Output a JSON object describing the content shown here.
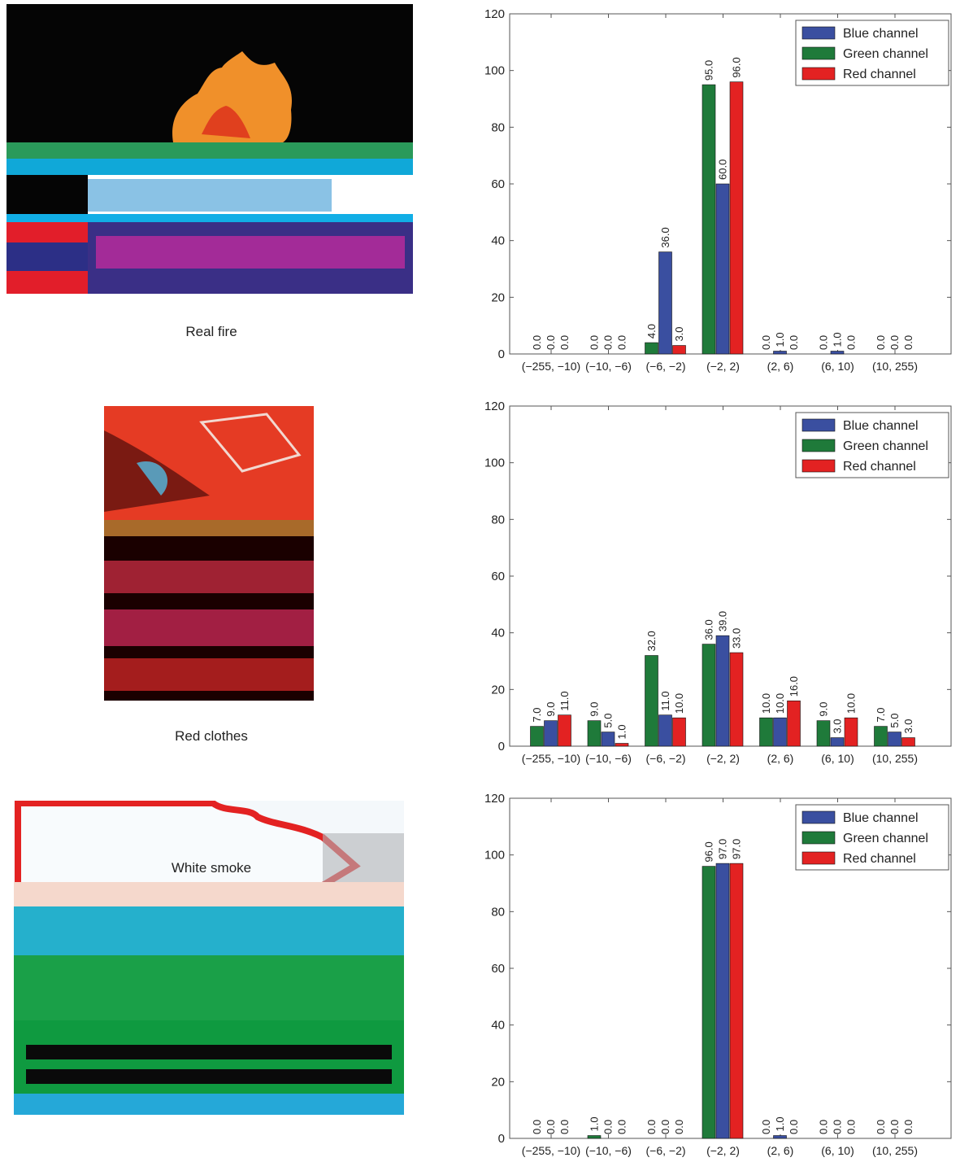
{
  "panels": [
    {
      "caption": "Real fire"
    },
    {
      "caption": "Red clothes"
    },
    {
      "caption": "White smoke"
    }
  ],
  "colors": {
    "blue": "#3a4fa0",
    "green": "#1f7a3a",
    "red": "#e32222"
  },
  "chart_data": [
    {
      "type": "bar",
      "categories": [
        "(−255, −10)",
        "(−10, −6)",
        "(−6, −2)",
        "(−2, 2)",
        "(2, 6)",
        "(6, 10)",
        "(10, 255)"
      ],
      "series": [
        {
          "name": "Blue channel",
          "values": [
            0,
            0,
            36,
            60,
            1,
            1,
            0
          ]
        },
        {
          "name": "Green channel",
          "values": [
            0,
            0,
            4,
            95,
            0,
            0,
            0
          ]
        },
        {
          "name": "Red channel",
          "values": [
            0,
            0,
            3,
            96,
            0,
            0,
            0
          ]
        }
      ],
      "ylim": [
        0,
        120
      ],
      "yticks": [
        0,
        20,
        40,
        60,
        80,
        100,
        120
      ],
      "legend": "top-right"
    },
    {
      "type": "bar",
      "categories": [
        "(−255, −10)",
        "(−10, −6)",
        "(−6, −2)",
        "(−2, 2)",
        "(2, 6)",
        "(6, 10)",
        "(10, 255)"
      ],
      "series": [
        {
          "name": "Blue channel",
          "values": [
            9,
            5,
            11,
            39,
            10,
            3,
            5
          ]
        },
        {
          "name": "Green channel",
          "values": [
            7,
            9,
            32,
            36,
            10,
            9,
            7
          ]
        },
        {
          "name": "Red channel",
          "values": [
            11,
            1,
            10,
            33,
            16,
            10,
            3
          ]
        }
      ],
      "ylim": [
        0,
        120
      ],
      "yticks": [
        0,
        20,
        40,
        60,
        80,
        100,
        120
      ],
      "legend": "top-right"
    },
    {
      "type": "bar",
      "categories": [
        "(−255, −10)",
        "(−10, −6)",
        "(−6, −2)",
        "(−2, 2)",
        "(2, 6)",
        "(6, 10)",
        "(10, 255)"
      ],
      "series": [
        {
          "name": "Blue channel",
          "values": [
            0,
            0,
            0,
            97,
            1,
            0,
            0
          ]
        },
        {
          "name": "Green channel",
          "values": [
            0,
            1,
            0,
            96,
            0,
            0,
            0
          ]
        },
        {
          "name": "Red channel",
          "values": [
            0,
            0,
            0,
            97,
            0,
            0,
            0
          ]
        }
      ],
      "ylim": [
        0,
        120
      ],
      "yticks": [
        0,
        20,
        40,
        60,
        80,
        100,
        120
      ],
      "legend": "top-right"
    }
  ]
}
